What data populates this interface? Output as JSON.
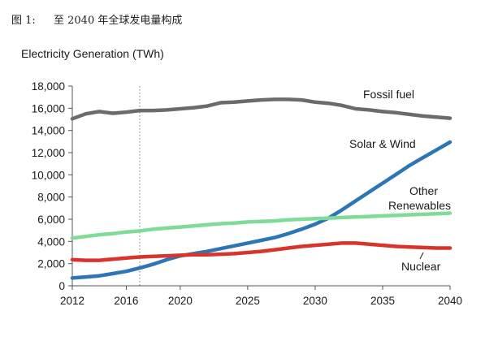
{
  "figure": {
    "number": "图 1:",
    "title": "至 2040 年全球发电量构成"
  },
  "chart_data": {
    "type": "line",
    "title": "",
    "ylabel": "Electricity Generation  (TWh)",
    "xlabel": "",
    "xlim": [
      2012,
      2040
    ],
    "ylim": [
      0,
      18000
    ],
    "x_ticks": [
      2012,
      2016,
      2020,
      2025,
      2030,
      2035,
      2040
    ],
    "y_ticks": [
      0,
      2000,
      4000,
      6000,
      8000,
      10000,
      12000,
      14000,
      16000,
      18000
    ],
    "y_tick_labels": [
      "0",
      "2,000",
      "4,000",
      "6,000",
      "8,000",
      "10,000",
      "12,000",
      "14,000",
      "16,000",
      "18,000"
    ],
    "grid": false,
    "reference_line": {
      "x": 2017,
      "style": "dotted"
    },
    "series": [
      {
        "name": "Fossil fuel",
        "color": "#6b6b6b",
        "x": [
          2012,
          2013,
          2014,
          2015,
          2016,
          2017,
          2018,
          2019,
          2020,
          2021,
          2022,
          2023,
          2024,
          2025,
          2026,
          2027,
          2028,
          2029,
          2030,
          2031,
          2032,
          2033,
          2034,
          2035,
          2036,
          2037,
          2038,
          2039,
          2040
        ],
        "y": [
          15050,
          15500,
          15700,
          15550,
          15650,
          15800,
          15800,
          15850,
          15950,
          16050,
          16200,
          16500,
          16550,
          16650,
          16750,
          16800,
          16800,
          16750,
          16550,
          16450,
          16250,
          15950,
          15850,
          15700,
          15600,
          15450,
          15300,
          15200,
          15100
        ]
      },
      {
        "name": "Solar & Wind",
        "color": "#2e75b6",
        "x": [
          2012,
          2013,
          2014,
          2015,
          2016,
          2017,
          2018,
          2019,
          2020,
          2021,
          2022,
          2023,
          2024,
          2025,
          2026,
          2027,
          2028,
          2029,
          2030,
          2031,
          2032,
          2033,
          2034,
          2035,
          2036,
          2037,
          2038,
          2039,
          2040
        ],
        "y": [
          700,
          800,
          900,
          1100,
          1300,
          1600,
          1950,
          2350,
          2700,
          2900,
          3100,
          3350,
          3600,
          3850,
          4100,
          4350,
          4700,
          5100,
          5550,
          6100,
          6850,
          7650,
          8450,
          9250,
          10050,
          10850,
          11550,
          12250,
          12950
        ]
      },
      {
        "name": "Other Renewables",
        "color": "#7fdb98",
        "x": [
          2012,
          2013,
          2014,
          2015,
          2016,
          2017,
          2018,
          2019,
          2020,
          2021,
          2022,
          2023,
          2024,
          2025,
          2026,
          2027,
          2028,
          2029,
          2030,
          2031,
          2032,
          2033,
          2034,
          2035,
          2036,
          2037,
          2038,
          2039,
          2040
        ],
        "y": [
          4300,
          4450,
          4600,
          4700,
          4850,
          4950,
          5100,
          5200,
          5300,
          5400,
          5500,
          5600,
          5650,
          5750,
          5800,
          5850,
          5950,
          6000,
          6050,
          6100,
          6150,
          6200,
          6250,
          6300,
          6350,
          6400,
          6450,
          6500,
          6550
        ]
      },
      {
        "name": "Nuclear",
        "color": "#d9342b",
        "x": [
          2012,
          2013,
          2014,
          2015,
          2016,
          2017,
          2018,
          2019,
          2020,
          2021,
          2022,
          2023,
          2024,
          2025,
          2026,
          2027,
          2028,
          2029,
          2030,
          2031,
          2032,
          2033,
          2034,
          2035,
          2036,
          2037,
          2038,
          2039,
          2040
        ],
        "y": [
          2350,
          2300,
          2300,
          2400,
          2500,
          2600,
          2650,
          2700,
          2750,
          2800,
          2800,
          2850,
          2900,
          3000,
          3100,
          3250,
          3400,
          3550,
          3650,
          3750,
          3850,
          3850,
          3750,
          3650,
          3550,
          3500,
          3450,
          3400,
          3400
        ]
      }
    ]
  }
}
